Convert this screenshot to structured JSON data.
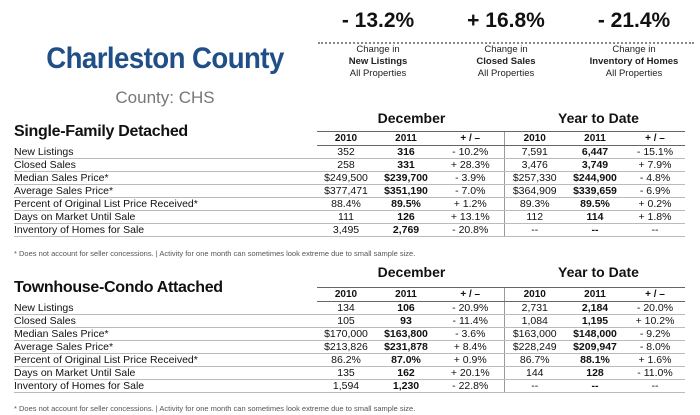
{
  "header": {
    "title": "Charleston County",
    "subtitle": "County: CHS"
  },
  "kpis": [
    {
      "value": "- 13.2%",
      "line1": "Change in",
      "line2": "New Listings",
      "line3": "All Properties"
    },
    {
      "value": "+ 16.8%",
      "line1": "Change in",
      "line2": "Closed Sales",
      "line3": "All Properties"
    },
    {
      "value": "- 21.4%",
      "line1": "Change in",
      "line2": "Inventory of Homes",
      "line3": "All Properties"
    }
  ],
  "sections": [
    {
      "title": "Single-Family Detached",
      "group1": "December",
      "group2": "Year to Date",
      "columns": [
        "2010",
        "2011",
        "+ / –",
        "2010",
        "2011",
        "+ / –"
      ],
      "rows": [
        {
          "label": "New Listings",
          "v": [
            "352",
            "316",
            "- 10.2%",
            "7,591",
            "6,447",
            "- 15.1%"
          ]
        },
        {
          "label": "Closed Sales",
          "v": [
            "258",
            "331",
            "+ 28.3%",
            "3,476",
            "3,749",
            "+ 7.9%"
          ]
        },
        {
          "label": "Median Sales Price*",
          "v": [
            "$249,500",
            "$239,700",
            "- 3.9%",
            "$257,330",
            "$244,900",
            "- 4.8%"
          ]
        },
        {
          "label": "Average Sales Price*",
          "v": [
            "$377,471",
            "$351,190",
            "- 7.0%",
            "$364,909",
            "$339,659",
            "- 6.9%"
          ]
        },
        {
          "label": "Percent of Original List Price Received*",
          "v": [
            "88.4%",
            "89.5%",
            "+ 1.2%",
            "89.3%",
            "89.5%",
            "+ 0.2%"
          ]
        },
        {
          "label": "Days on Market Until Sale",
          "v": [
            "111",
            "126",
            "+ 13.1%",
            "112",
            "114",
            "+ 1.8%"
          ]
        },
        {
          "label": "Inventory of Homes for Sale",
          "v": [
            "3,495",
            "2,769",
            "- 20.8%",
            "--",
            "--",
            "--"
          ]
        }
      ],
      "footnote": "* Does not account for seller concessions.  |  Activity for one month can sometimes look extreme due to small sample size."
    },
    {
      "title": "Townhouse-Condo Attached",
      "group1": "December",
      "group2": "Year to Date",
      "columns": [
        "2010",
        "2011",
        "+ / –",
        "2010",
        "2011",
        "+ / –"
      ],
      "rows": [
        {
          "label": "New Listings",
          "v": [
            "134",
            "106",
            "- 20.9%",
            "2,731",
            "2,184",
            "- 20.0%"
          ]
        },
        {
          "label": "Closed Sales",
          "v": [
            "105",
            "93",
            "- 11.4%",
            "1,084",
            "1,195",
            "+ 10.2%"
          ]
        },
        {
          "label": "Median Sales Price*",
          "v": [
            "$170,000",
            "$163,800",
            "- 3.6%",
            "$163,000",
            "$148,000",
            "- 9.2%"
          ]
        },
        {
          "label": "Average Sales Price*",
          "v": [
            "$213,826",
            "$231,878",
            "+ 8.4%",
            "$228,249",
            "$209,947",
            "- 8.0%"
          ]
        },
        {
          "label": "Percent of Original List Price Received*",
          "v": [
            "86.2%",
            "87.0%",
            "+ 0.9%",
            "86.7%",
            "88.1%",
            "+ 1.6%"
          ]
        },
        {
          "label": "Days on Market Until Sale",
          "v": [
            "135",
            "162",
            "+ 20.1%",
            "144",
            "128",
            "- 11.0%"
          ]
        },
        {
          "label": "Inventory of Homes for Sale",
          "v": [
            "1,594",
            "1,230",
            "- 22.8%",
            "--",
            "--",
            "--"
          ]
        }
      ],
      "footnote": "* Does not account for seller concessions.  |  Activity for one month can sometimes look extreme due to small sample size."
    }
  ]
}
